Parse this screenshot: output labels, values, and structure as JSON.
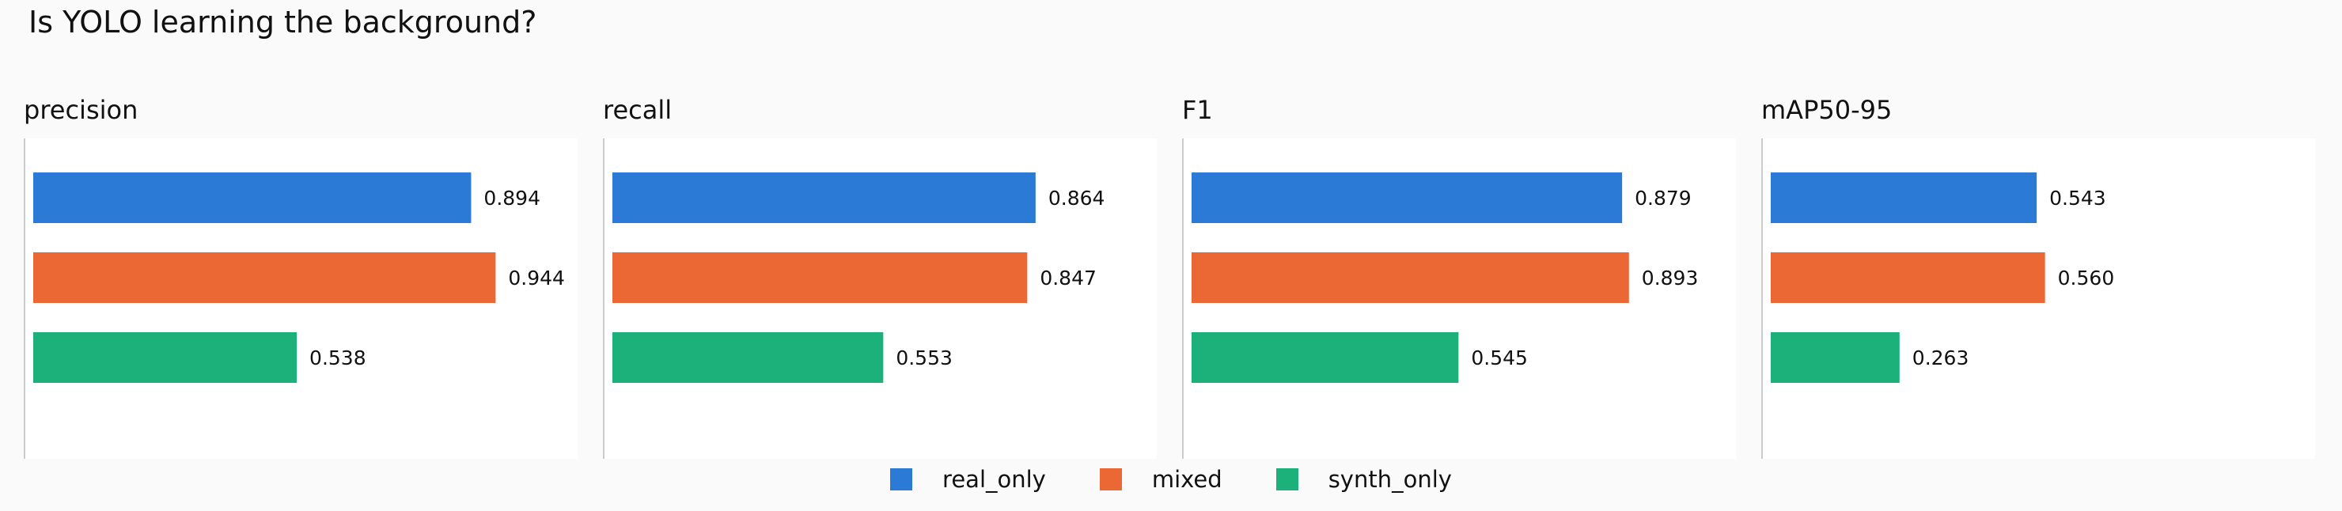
{
  "title": "Is YOLO learning the background?",
  "chart_data": {
    "type": "bar",
    "orientation": "horizontal",
    "title": "Is YOLO learning the background?",
    "series_names": [
      "real_only",
      "mixed",
      "synth_only"
    ],
    "colors": [
      "#2b7bd6",
      "#eb6835",
      "#1cb07b"
    ],
    "xlim": [
      0,
      1.05
    ],
    "grid": false,
    "legend_position": "bottom-center",
    "panels": [
      {
        "title": "precision",
        "values": [
          0.894,
          0.944,
          0.538
        ],
        "labels": [
          "0.894",
          "0.944",
          "0.538"
        ]
      },
      {
        "title": "recall",
        "values": [
          0.864,
          0.847,
          0.553
        ],
        "labels": [
          "0.864",
          "0.847",
          "0.553"
        ]
      },
      {
        "title": "F1",
        "values": [
          0.879,
          0.893,
          0.545
        ],
        "labels": [
          "0.879",
          "0.893",
          "0.545"
        ]
      },
      {
        "title": "mAP50-95",
        "values": [
          0.543,
          0.56,
          0.263
        ],
        "labels": [
          "0.543",
          "0.560",
          "0.263"
        ]
      }
    ]
  }
}
